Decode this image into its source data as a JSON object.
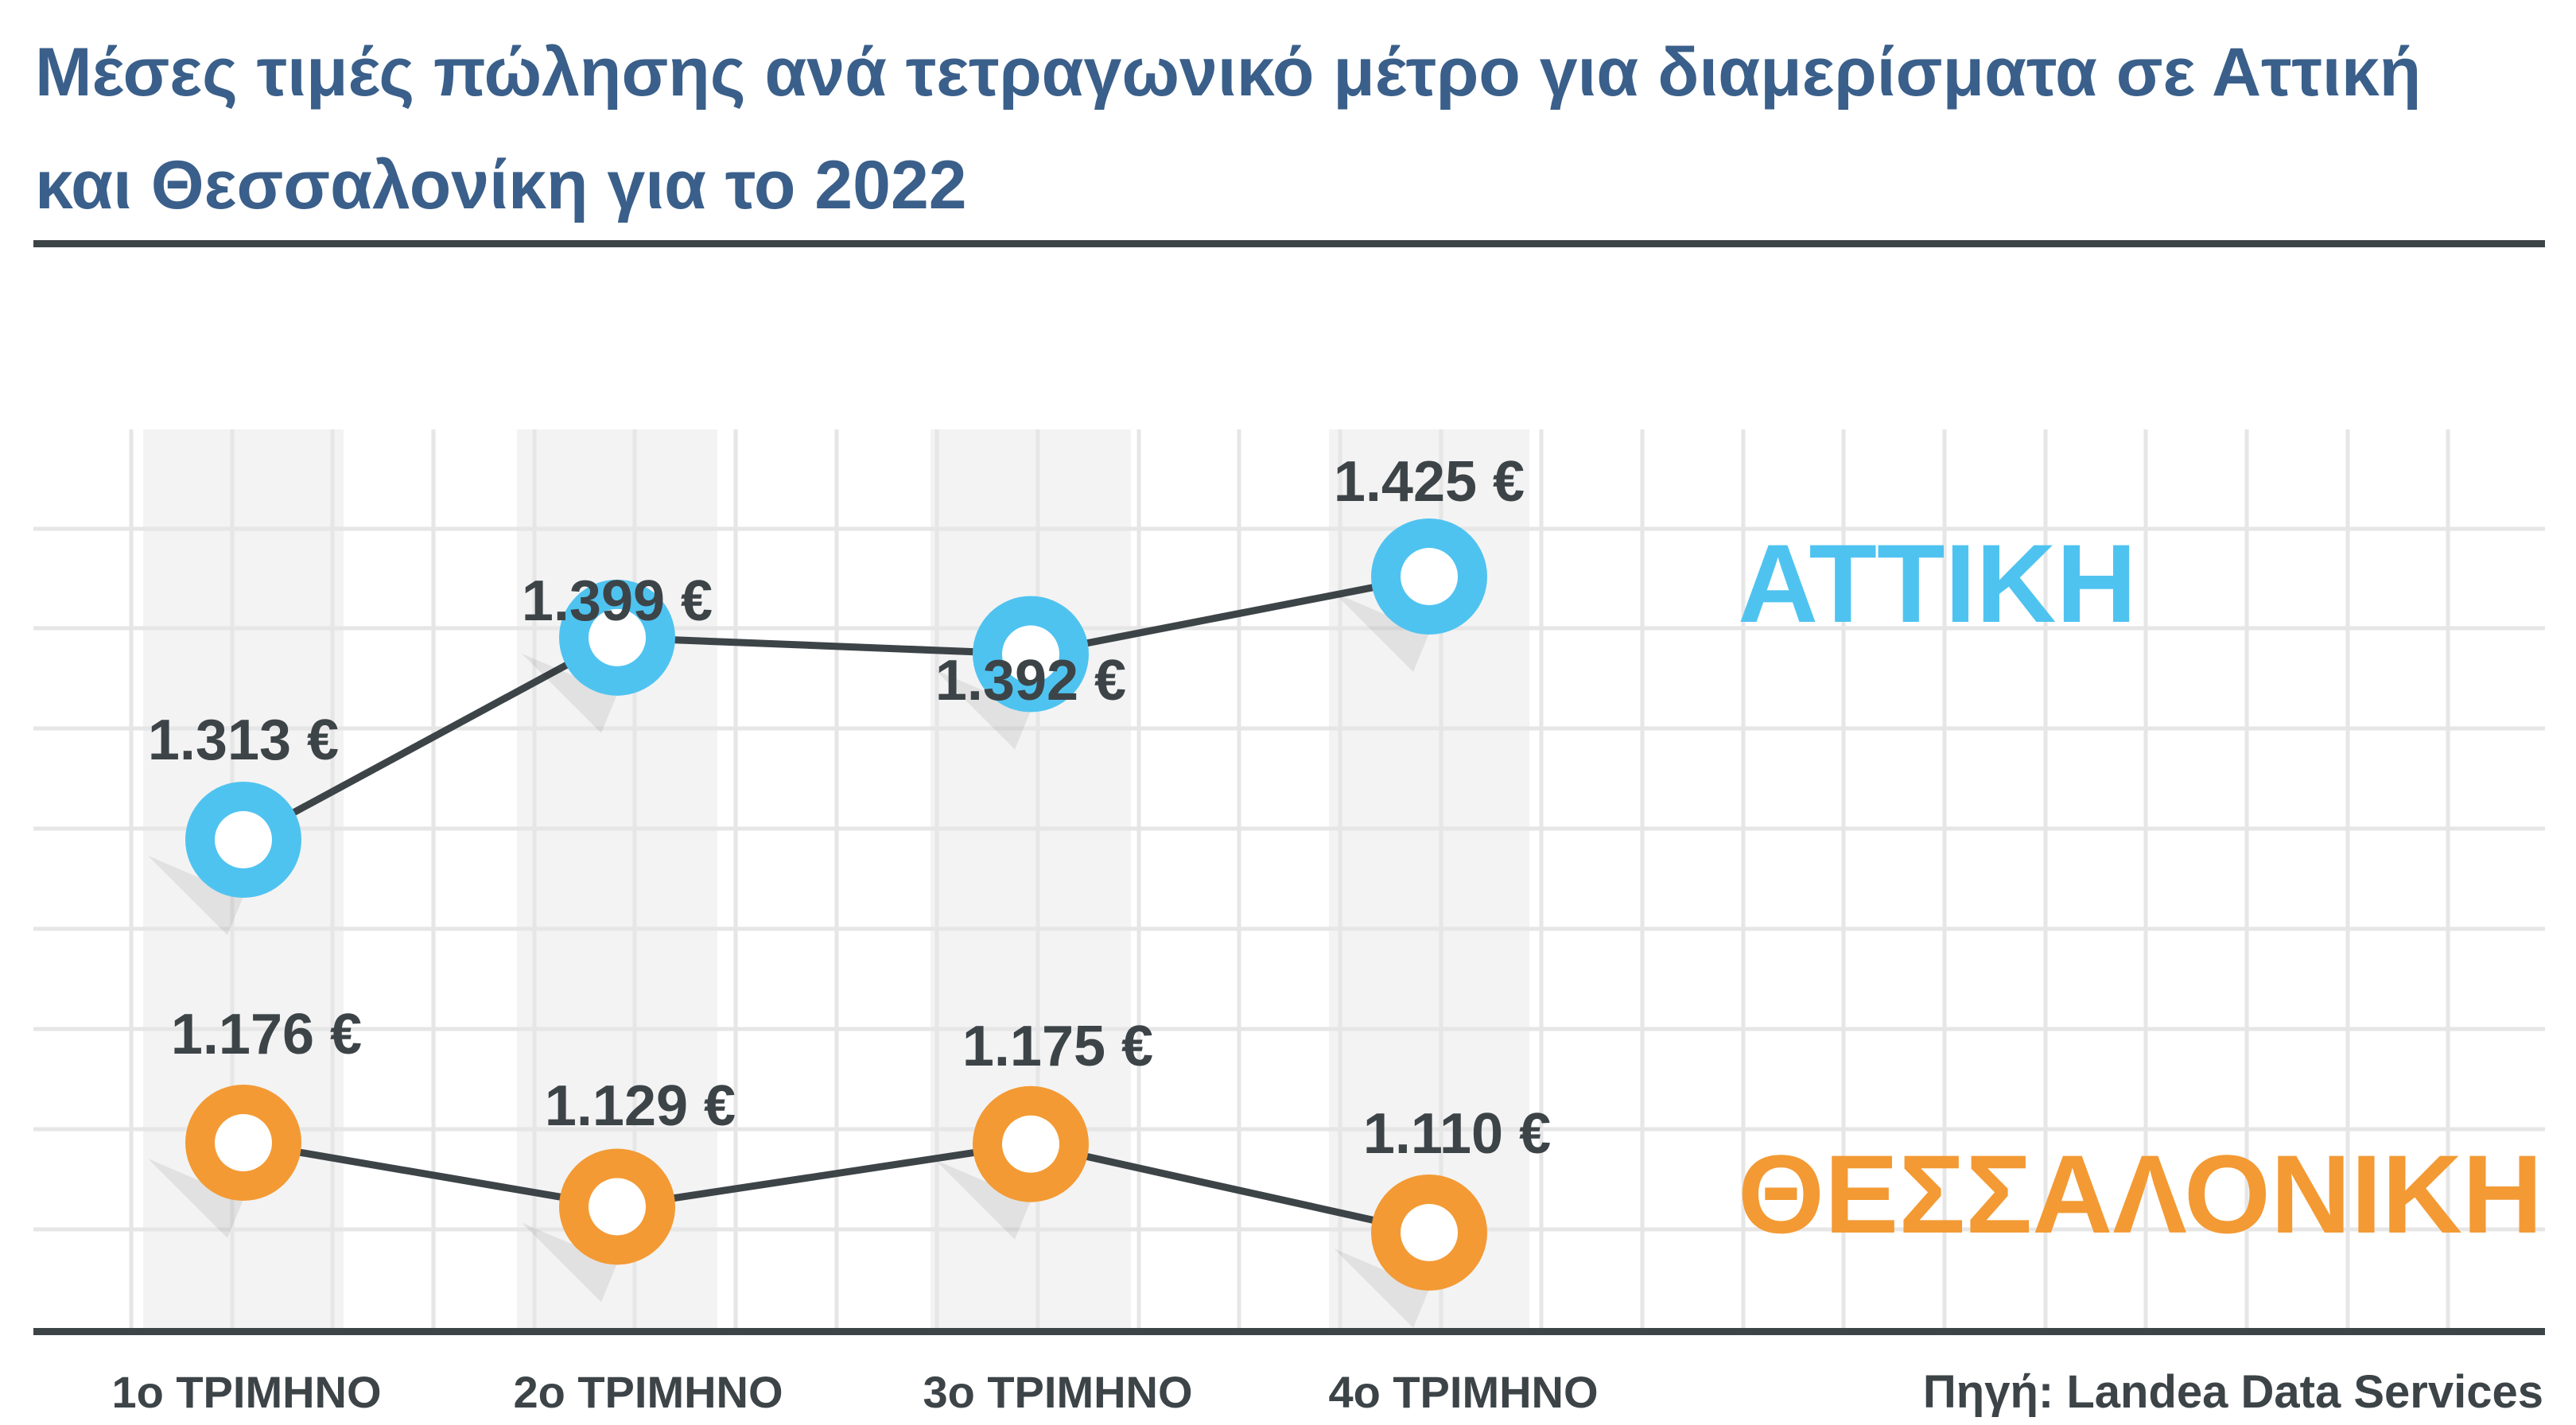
{
  "title_lines": [
    "Μέσες τιμές πώλησης ανά τετραγωνικό μέτρο για διαμερίσματα σε Αττική",
    "και Θεσσαλονίκη για το 2022"
  ],
  "source": "Πηγή: Landea Data Services",
  "colors": {
    "title": "#3a5f8a",
    "text": "#3d4448",
    "attica": "#4fc3f0",
    "thessaloniki": "#f39a34",
    "line": "#3d4448",
    "grid": "#e6e6e6",
    "band": "#f3f3f3"
  },
  "chart_data": {
    "type": "line",
    "categories": [
      "1ο ΤΡΙΜΗΝΟ",
      "2ο ΤΡΙΜΗΝΟ",
      "3ο ΤΡΙΜΗΝΟ",
      "4ο ΤΡΙΜΗΝΟ"
    ],
    "series": [
      {
        "name": "ΑΤΤΙΚΗ",
        "values": [
          1313,
          1399,
          1392,
          1425
        ],
        "value_labels": [
          "1.313 €",
          "1.399 €",
          "1.392 €",
          "1.425 €"
        ],
        "color": "#4fc3f0"
      },
      {
        "name": "ΘΕΣΣΑΛΟΝΙΚΗ",
        "values": [
          1176,
          1129,
          1175,
          1110
        ],
        "value_labels": [
          "1.176 €",
          "1.129 €",
          "1.175 €",
          "1.110 €"
        ],
        "color": "#f39a34"
      }
    ],
    "grid": true
  }
}
